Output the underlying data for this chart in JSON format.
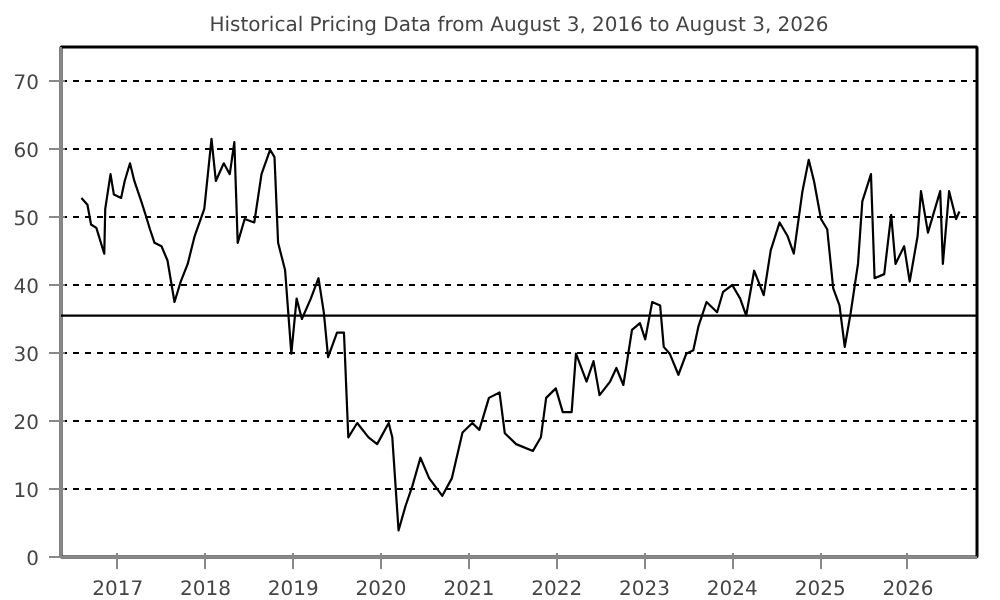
{
  "chart_data": {
    "type": "line",
    "title": "Historical Pricing Data from August 3, 2016 to August 3, 2026",
    "x": [
      "2016-08-03",
      "2016-08-28",
      "2016-09-12",
      "2016-10-04",
      "2016-11-06",
      "2016-11-10",
      "2016-12-02",
      "2016-12-16",
      "2017-01-15",
      "2017-01-30",
      "2017-02-21",
      "2017-03-11",
      "2017-04-09",
      "2017-04-27",
      "2017-05-15",
      "2017-06-03",
      "2017-07-02",
      "2017-07-27",
      "2017-08-25",
      "2017-09-20",
      "2017-10-19",
      "2017-11-17",
      "2017-12-27",
      "2018-01-26",
      "2018-02-13",
      "2018-03-18",
      "2018-04-12",
      "2018-05-01",
      "2018-05-15",
      "2018-06-13",
      "2018-07-23",
      "2018-08-22",
      "2018-09-27",
      "2018-10-15",
      "2018-10-30",
      "2018-11-28",
      "2018-12-24",
      "2019-01-15",
      "2019-02-06",
      "2019-03-15",
      "2019-04-16",
      "2019-05-08",
      "2019-05-26",
      "2019-07-02",
      "2019-07-31",
      "2019-08-18",
      "2019-09-24",
      "2019-11-10",
      "2019-12-16",
      "2020-02-02",
      "2020-02-17",
      "2020-03-14",
      "2020-04-12",
      "2020-05-11",
      "2020-06-13",
      "2020-07-19",
      "2020-09-12",
      "2020-10-22",
      "2020-12-05",
      "2021-01-15",
      "2021-02-13",
      "2021-03-25",
      "2021-05-08",
      "2021-05-30",
      "2021-07-16",
      "2021-09-24",
      "2021-10-27",
      "2021-11-18",
      "2021-12-28",
      "2022-01-26",
      "2022-03-04",
      "2022-03-22",
      "2022-05-05",
      "2022-06-03",
      "2022-06-28",
      "2022-08-11",
      "2022-09-06",
      "2022-10-05",
      "2022-11-10",
      "2022-12-13",
      "2023-01-04",
      "2023-02-02",
      "2023-03-07",
      "2023-03-22",
      "2023-04-16",
      "2023-05-22",
      "2023-06-24",
      "2023-07-23",
      "2023-08-14",
      "2023-09-16",
      "2023-10-30",
      "2023-11-24",
      "2024-01-01",
      "2024-02-03",
      "2024-02-28",
      "2024-04-01",
      "2024-05-11",
      "2024-06-09",
      "2024-07-16",
      "2024-08-18",
      "2024-09-13",
      "2024-10-19",
      "2024-11-14",
      "2024-12-06",
      "2025-01-04",
      "2025-01-30",
      "2025-02-24",
      "2025-03-22",
      "2025-04-13",
      "2025-05-08",
      "2025-06-07",
      "2025-06-25",
      "2025-07-31",
      "2025-08-15",
      "2025-09-24",
      "2025-10-23",
      "2025-11-10",
      "2025-12-16",
      "2026-01-08",
      "2026-02-10",
      "2026-02-24",
      "2026-03-25",
      "2026-04-23",
      "2026-05-15",
      "2026-05-26",
      "2026-06-21",
      "2026-07-20",
      "2026-08-03"
    ],
    "series": [
      {
        "color": "#000000",
        "values": [
          52.8,
          51.8,
          48.9,
          48.4,
          44.6,
          51.2,
          56.3,
          53.3,
          52.8,
          55.3,
          57.9,
          55.3,
          52.3,
          50.3,
          48.2,
          46.2,
          45.7,
          43.6,
          37.5,
          40.5,
          43.1,
          47.2,
          51.2,
          61.5,
          55.3,
          57.9,
          56.3,
          61,
          46.2,
          49.7,
          49.2,
          56.3,
          59.9,
          58.8,
          46.2,
          42.2,
          29.9,
          38,
          35,
          38,
          41,
          36,
          29.4,
          33,
          33,
          17.6,
          19.7,
          17.6,
          16.6,
          19.7,
          17.6,
          3.9,
          7.5,
          10.5,
          14.6,
          11.6,
          9,
          11.6,
          18.3,
          19.7,
          18.7,
          23.4,
          24.2,
          18.2,
          16.6,
          15.6,
          17.6,
          23.4,
          24.8,
          21.3,
          21.3,
          29.9,
          25.8,
          28.8,
          23.8,
          25.8,
          27.8,
          25.3,
          33.4,
          34.4,
          32,
          37.5,
          37,
          30.9,
          29.9,
          26.8,
          29.9,
          30.4,
          34,
          37.5,
          36,
          39,
          40,
          38,
          35.5,
          42.1,
          38.5,
          45.1,
          49.2,
          47.2,
          44.6,
          53.8,
          58.4,
          55.3,
          49.7,
          48.2,
          39.5,
          37,
          30.9,
          36,
          43.1,
          52.3,
          56.3,
          41,
          41.6,
          50.3,
          43.1,
          45.7,
          40.5,
          47.2,
          53.8,
          47.7,
          51.2,
          53.8,
          43.1,
          53.8,
          49.7,
          50.8
        ]
      }
    ],
    "xlim": [
      "2016-05-10",
      "2026-10-15"
    ],
    "xticks": [
      {
        "value": "2017-01-01",
        "label": "2017"
      },
      {
        "value": "2018-01-01",
        "label": "2018"
      },
      {
        "value": "2019-01-01",
        "label": "2019"
      },
      {
        "value": "2020-01-01",
        "label": "2020"
      },
      {
        "value": "2021-01-01",
        "label": "2021"
      },
      {
        "value": "2022-01-01",
        "label": "2022"
      },
      {
        "value": "2023-01-01",
        "label": "2023"
      },
      {
        "value": "2024-01-01",
        "label": "2024"
      },
      {
        "value": "2025-01-01",
        "label": "2025"
      },
      {
        "value": "2026-01-01",
        "label": "2026"
      }
    ],
    "ylim": [
      0,
      75
    ],
    "yticks": [
      0,
      10,
      20,
      30,
      40,
      50,
      60,
      70
    ],
    "grid": "y",
    "marker": "none",
    "line_style": "solid",
    "ref_lines": [
      {
        "axis": "y",
        "value": 35.5,
        "color": "#000000",
        "line_style": "solid"
      }
    ]
  }
}
